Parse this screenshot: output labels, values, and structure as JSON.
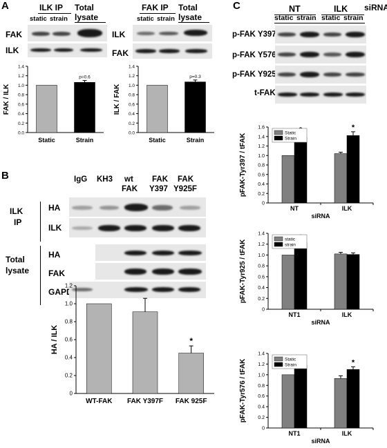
{
  "panelA": {
    "letter": "A",
    "left_blot": {
      "title_ip": "ILK IP",
      "title_total": "Total",
      "title_lysate": "lysate",
      "cond_static": "static",
      "cond_strain": "strain",
      "rows": [
        "FAK",
        "ILK"
      ]
    },
    "right_blot": {
      "title_ip": "FAK IP",
      "title_total": "Total",
      "title_lysate": "lysate",
      "cond_static": "static",
      "cond_strain": "strain",
      "rows": [
        "ILK",
        "FAK"
      ]
    }
  },
  "panelB": {
    "letter": "B",
    "lanes": [
      "IgG",
      "KH3",
      "wt",
      "FAK",
      "FAK"
    ],
    "lanes_line2": [
      "",
      "",
      "FAK",
      "Y397",
      "Y925F"
    ],
    "group_ip": [
      "ILK",
      "IP"
    ],
    "group_total": [
      "Total",
      "lysate"
    ],
    "rows_ip": [
      "HA",
      "ILK"
    ],
    "rows_total": [
      "HA",
      "FAK",
      "GAPDH"
    ]
  },
  "panelC": {
    "letter": "C",
    "groups": [
      "NT",
      "ILK"
    ],
    "sirna_label": "siRNA",
    "cond_static": "static",
    "cond_strain": "strain",
    "rows": [
      "p-FAK Y397",
      "p-FAK Y576",
      "p-FAK Y925",
      "t-FAK"
    ]
  },
  "chart_data": [
    {
      "id": "A-left",
      "type": "bar",
      "categories": [
        "Static",
        "Strain"
      ],
      "values": [
        1.0,
        1.06
      ],
      "errors": [
        0,
        0.04
      ],
      "colors": [
        "#b3b3b3",
        "#000000"
      ],
      "annotation": "p=0.6",
      "ylabel": "FAK / ILK",
      "ylim": [
        0,
        1.4
      ],
      "yticks": [
        "0.0",
        "0.2",
        "0.4",
        "0.6",
        "0.8",
        "1.0",
        "1.2",
        "1.4"
      ]
    },
    {
      "id": "A-right",
      "type": "bar",
      "categories": [
        "Static",
        "Strain"
      ],
      "values": [
        1.0,
        1.07
      ],
      "errors": [
        0,
        0.04
      ],
      "colors": [
        "#b3b3b3",
        "#000000"
      ],
      "annotation": "p=0.3",
      "ylabel": "ILK / FAK",
      "ylim": [
        0,
        1.4
      ],
      "yticks": [
        "0.0",
        "0.2",
        "0.4",
        "0.6",
        "0.8",
        "1.0",
        "1.2",
        "1.4"
      ]
    },
    {
      "id": "B-bottom",
      "type": "bar",
      "categories": [
        "WT-FAK",
        "FAK Y397F",
        "FAK 925F"
      ],
      "values": [
        1.0,
        0.91,
        0.45
      ],
      "errors": [
        0,
        0.15,
        0.08
      ],
      "colors": [
        "#b3b3b3",
        "#b3b3b3",
        "#b3b3b3"
      ],
      "significance": [
        "",
        "",
        "*"
      ],
      "ylabel": "HA / ILK",
      "ylim": [
        0,
        1.2
      ],
      "yticks": [
        "0",
        "0.2",
        "0.4",
        "0.6",
        "0.8",
        "1.0",
        "1.2"
      ]
    },
    {
      "id": "C-Y397",
      "type": "bar",
      "categories": [
        "NT",
        "ILK"
      ],
      "xlabel": "siRNA",
      "series": [
        {
          "name": "Static",
          "values": [
            1.0,
            1.04
          ],
          "errors": [
            0,
            0.03
          ],
          "color": "#808080"
        },
        {
          "name": "Strain",
          "values": [
            1.38,
            1.42
          ],
          "errors": [
            0.07,
            0.08
          ],
          "color": "#000000"
        }
      ],
      "significance": [
        "*",
        "*"
      ],
      "ylabel": "pFAK-Tyr397 / tFAK",
      "ylim": [
        0,
        1.6
      ],
      "yticks": [
        "0",
        "0.2",
        "0.4",
        "0.6",
        "0.8",
        "1.0",
        "1.2",
        "1.4",
        "1.6"
      ],
      "legend": "top-left"
    },
    {
      "id": "C-Y925",
      "type": "bar",
      "categories": [
        "NT1",
        "ILK"
      ],
      "xlabel": "siRNA",
      "series": [
        {
          "name": "static",
          "values": [
            1.0,
            1.02
          ],
          "errors": [
            0,
            0.03
          ],
          "color": "#808080"
        },
        {
          "name": "strain",
          "values": [
            1.23,
            1.01
          ],
          "errors": [
            0.02,
            0.03
          ],
          "color": "#000000"
        }
      ],
      "significance": [
        "*",
        ""
      ],
      "ylabel": "pFAK-Tyr925 / tFAK",
      "ylim": [
        0,
        1.4
      ],
      "yticks": [
        "0",
        "0.2",
        "0.4",
        "0.6",
        "0.8",
        "1.0",
        "1.2",
        "1.4"
      ],
      "legend": "top-left"
    },
    {
      "id": "C-Y576",
      "type": "bar",
      "categories": [
        "NT1",
        "ILK"
      ],
      "xlabel": "siRNA",
      "series": [
        {
          "name": "Static",
          "values": [
            1.0,
            0.93
          ],
          "errors": [
            0,
            0.05
          ],
          "color": "#808080"
        },
        {
          "name": "Strain",
          "values": [
            1.18,
            1.1
          ],
          "errors": [
            0.03,
            0.05
          ],
          "color": "#000000"
        }
      ],
      "significance": [
        "*",
        "*"
      ],
      "ylabel": "pFAK-Tyr576 / tFAK",
      "ylim": [
        0,
        1.4
      ],
      "yticks": [
        "0",
        "0.2",
        "0.4",
        "0.6",
        "0.8",
        "1.0",
        "1.2",
        "1.4"
      ],
      "legend": "top-left"
    }
  ]
}
